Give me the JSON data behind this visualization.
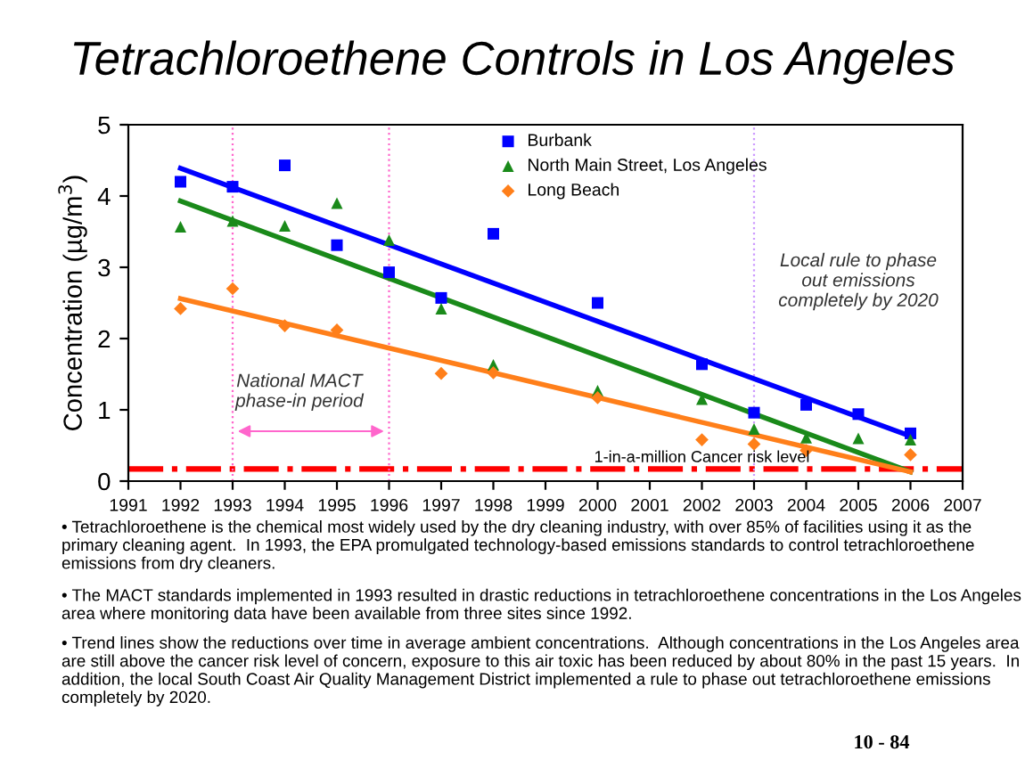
{
  "chart_data": {
    "type": "scatter",
    "title": "Tetrachloroethene Controls in Los Angeles",
    "ylabel": "Concentration (µg/m$^{3}$)",
    "xlim": [
      1991,
      2007
    ],
    "xticks": [
      1991,
      1992,
      1993,
      1994,
      1995,
      1996,
      1997,
      1998,
      1999,
      2000,
      2001,
      2002,
      2003,
      2004,
      2005,
      2006,
      2007
    ],
    "ylim": [
      0,
      5
    ],
    "yticks": [
      0,
      1,
      2,
      3,
      4,
      5
    ],
    "grid": false,
    "legend": "top",
    "series": [
      {
        "name": "Burbank",
        "color": "#0000ff",
        "marker": "square",
        "x": [
          1992,
          1993,
          1994,
          1995,
          1996,
          1997,
          1998,
          2000,
          2002,
          2003,
          2004,
          2005,
          2006
        ],
        "values": [
          4.2,
          4.13,
          4.43,
          3.31,
          2.93,
          2.57,
          3.47,
          2.5,
          1.64,
          0.96,
          1.07,
          0.94,
          0.67
        ]
      },
      {
        "name": "North Main Street, Los Angeles",
        "color": "#1a8a1a",
        "marker": "triangle",
        "x": [
          1992,
          1993,
          1994,
          1995,
          1996,
          1997,
          1998,
          2000,
          2002,
          2003,
          2004,
          2005,
          2006
        ],
        "values": [
          3.57,
          3.65,
          3.58,
          3.9,
          3.38,
          2.42,
          1.63,
          1.27,
          1.15,
          0.73,
          0.61,
          0.6,
          0.58
        ]
      },
      {
        "name": "Long Beach",
        "color": "#ff7f1a",
        "marker": "diamond",
        "x": [
          1992,
          1993,
          1994,
          1995,
          1997,
          1998,
          2000,
          2002,
          2003,
          2004,
          2006
        ],
        "values": [
          2.42,
          2.7,
          2.18,
          2.12,
          1.51,
          1.52,
          1.17,
          0.58,
          0.52,
          0.43,
          0.37
        ]
      },
      {
        "type": "line",
        "color": "#0000ff",
        "x": [
          1992,
          2006
        ],
        "values": [
          4.39,
          0.63
        ]
      },
      {
        "type": "line",
        "color": "#1a8a1a",
        "x": [
          1992,
          2006
        ],
        "values": [
          3.93,
          0.13
        ]
      },
      {
        "type": "line",
        "color": "#ff7f1a",
        "x": [
          1992,
          2006
        ],
        "values": [
          2.56,
          0.13
        ]
      }
    ],
    "ref_lines": [
      {
        "axis": "y",
        "value": 0.17,
        "label": "1-in-a-million Cancer risk level",
        "color": "#ff0000",
        "line_style": "dashdot"
      },
      {
        "axis": "x",
        "value": 1993,
        "color": "#ff66cc",
        "line_style": "dotted"
      },
      {
        "axis": "x",
        "value": 1996,
        "color": "#ff66cc",
        "line_style": "dotted"
      },
      {
        "axis": "x",
        "value": 2003,
        "color": "#cc99ff",
        "line_style": "dotted"
      }
    ],
    "annotations": [
      "National MACT\nphase-in period",
      "Local rule to phase\nout emissions\ncompletely by 2020",
      "• Tetrachloroethene is the chemical most widely used by the dry cleaning industry, with over 85% of facilities using it as the primary cleaning agent.  In 1993, the EPA promulgated technology-based emissions standards to control tetrachloroethene emissions from dry cleaners.",
      "• The MACT standards implemented in 1993 resulted in drastic reductions in tetrachloroethene concentrations in the Los Angeles area where monitoring data have been available from three sites since 1992.",
      "• Trend lines show the reductions over time in average ambient concentrations.  Although concentrations in the Los Angeles area are still above the cancer risk level of concern, exposure to this air toxic has been reduced by about 80% in the past 15 years.  In addition, the local South Coast Air Quality Management District implemented a rule to phase out tetrachloroethene emissions completely by 2020.",
      "10 - 84"
    ]
  }
}
